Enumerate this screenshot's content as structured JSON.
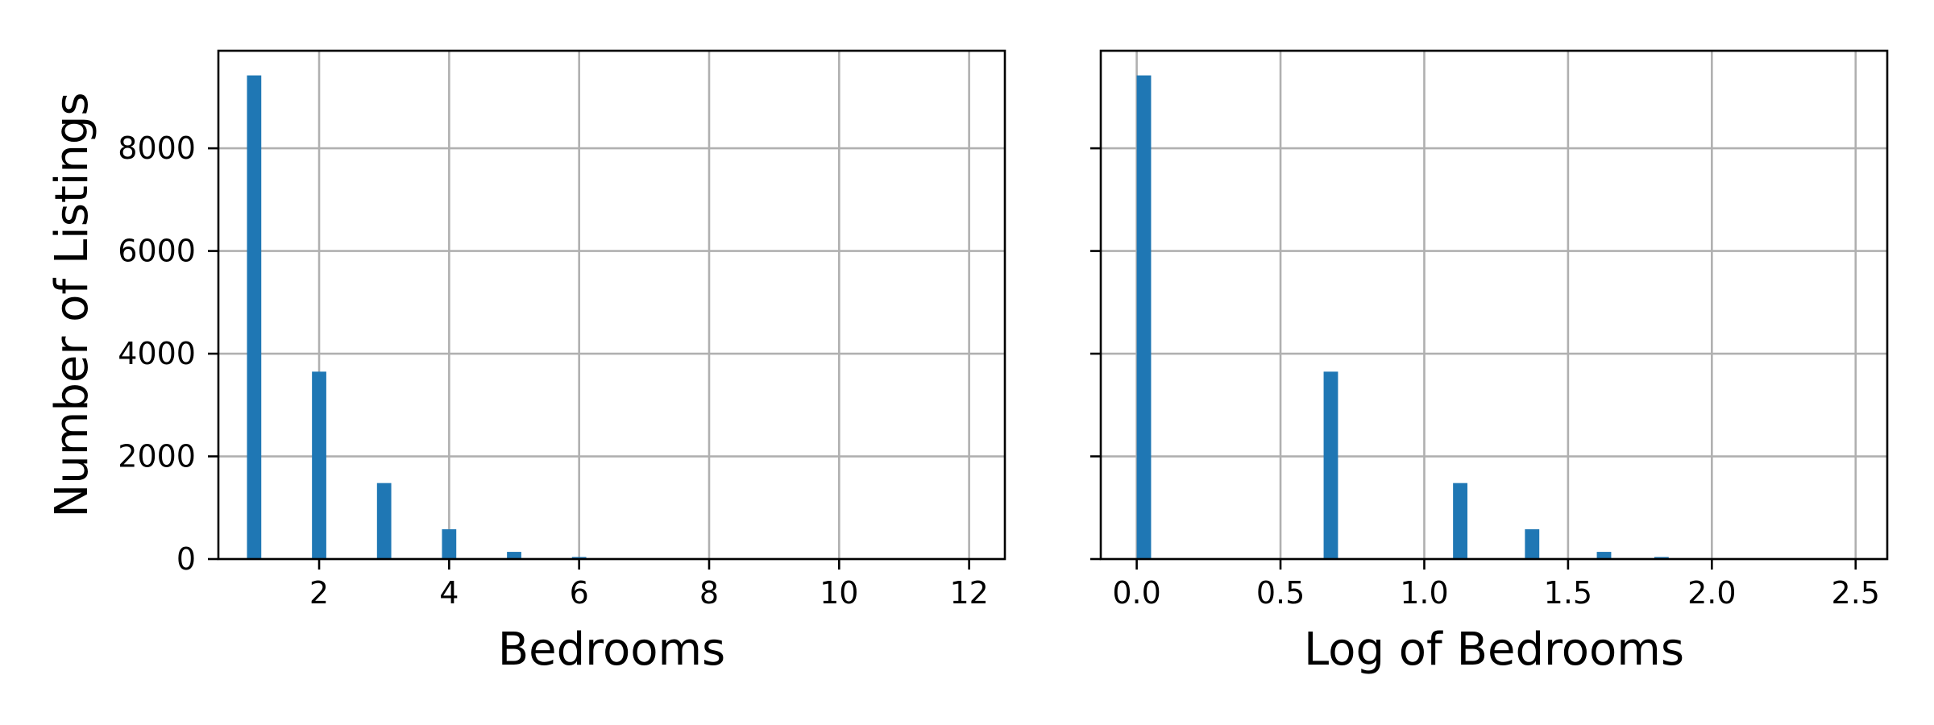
{
  "colors": {
    "bar": "#1f77b4",
    "grid": "#b0b0b0",
    "axes": "#000000",
    "background": "#ffffff"
  },
  "chart_data": [
    {
      "type": "bar",
      "title": "",
      "xlabel": "Bedrooms",
      "ylabel": "Number of Listings",
      "xlim": [
        0.45,
        12.55
      ],
      "ylim": [
        0,
        9900
      ],
      "xticks": [
        2,
        4,
        6,
        8,
        10,
        12
      ],
      "xtick_labels": [
        "2",
        "4",
        "6",
        "8",
        "10",
        "12"
      ],
      "yticks": [
        0,
        2000,
        4000,
        6000,
        8000
      ],
      "ytick_labels": [
        "0",
        "2000",
        "4000",
        "6000",
        "8000"
      ],
      "grid": true,
      "bin_width": 0.22,
      "bins": [
        {
          "x": 1,
          "value": 9420
        },
        {
          "x": 2,
          "value": 3650
        },
        {
          "x": 3,
          "value": 1480
        },
        {
          "x": 4,
          "value": 580
        },
        {
          "x": 5,
          "value": 140
        },
        {
          "x": 6,
          "value": 40
        },
        {
          "x": 7,
          "value": 8
        },
        {
          "x": 8,
          "value": 4
        },
        {
          "x": 12,
          "value": 1
        }
      ]
    },
    {
      "type": "bar",
      "title": "",
      "xlabel": "Log of Bedrooms",
      "ylabel": "",
      "xlim": [
        -0.125,
        2.61
      ],
      "ylim": [
        0,
        9900
      ],
      "xticks": [
        0.0,
        0.5,
        1.0,
        1.5,
        2.0,
        2.5
      ],
      "xtick_labels": [
        "0.0",
        "0.5",
        "1.0",
        "1.5",
        "2.0",
        "2.5"
      ],
      "yticks": [
        0,
        2000,
        4000,
        6000,
        8000
      ],
      "ytick_labels": [],
      "grid": true,
      "bin_width": 0.05,
      "bins": [
        {
          "x": 0.025,
          "value": 9420
        },
        {
          "x": 0.675,
          "value": 3650
        },
        {
          "x": 1.125,
          "value": 1480
        },
        {
          "x": 1.375,
          "value": 580
        },
        {
          "x": 1.625,
          "value": 140
        },
        {
          "x": 1.825,
          "value": 40
        },
        {
          "x": 1.975,
          "value": 8
        },
        {
          "x": 2.075,
          "value": 4
        },
        {
          "x": 2.475,
          "value": 1
        }
      ]
    }
  ]
}
